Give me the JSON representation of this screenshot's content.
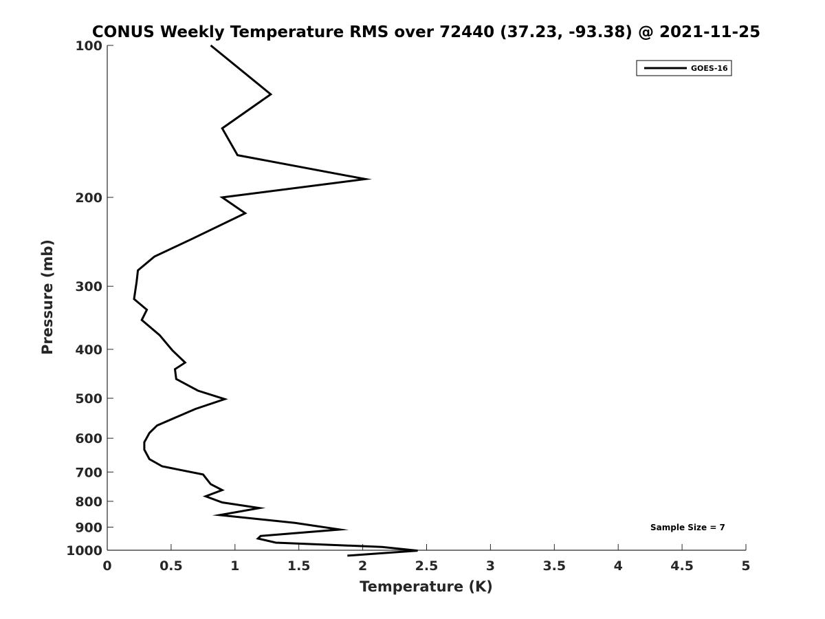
{
  "chart_data": {
    "type": "line",
    "title": "CONUS Weekly Temperature RMS over 72440 (37.23, -93.38) @ 2021-11-25",
    "xlabel": "Temperature (K)",
    "ylabel": "Pressure (mb)",
    "xlim": [
      0,
      5
    ],
    "ylim": [
      100,
      1000
    ],
    "y_scale": "log",
    "y_reversed": true,
    "grid": false,
    "legend_position": "top-right",
    "x_ticks": [
      "0",
      "0.5",
      "1",
      "1.5",
      "2",
      "2.5",
      "3",
      "3.5",
      "4",
      "4.5",
      "5"
    ],
    "y_ticks": [
      "100",
      "200",
      "300",
      "400",
      "500",
      "600",
      "700",
      "800",
      "900",
      "1000"
    ],
    "series": [
      {
        "name": "GOES-16",
        "color": "#000000",
        "x": [
          0.81,
          1.28,
          0.9,
          1.02,
          2.02,
          0.9,
          1.08,
          0.66,
          0.37,
          0.24,
          0.23,
          0.21,
          0.31,
          0.27,
          0.41,
          0.51,
          0.61,
          0.53,
          0.54,
          0.71,
          0.92,
          0.69,
          0.39,
          0.33,
          0.29,
          0.29,
          0.33,
          0.43,
          0.75,
          0.81,
          0.9,
          0.77,
          0.9,
          1.19,
          0.88,
          1.47,
          1.82,
          1.2,
          1.18,
          1.32,
          2.15,
          2.43,
          1.88
        ],
        "y": [
          100,
          125,
          146,
          165,
          184,
          200,
          215,
          242,
          262,
          279,
          294,
          318,
          334,
          350,
          375,
          402,
          425,
          438,
          458,
          483,
          502,
          525,
          566,
          586,
          611,
          632,
          660,
          682,
          708,
          740,
          760,
          782,
          804,
          825,
          852,
          883,
          910,
          937,
          948,
          966,
          985,
          1002,
          1025
        ]
      }
    ],
    "annotations": [
      "Sample Size = 7"
    ]
  }
}
